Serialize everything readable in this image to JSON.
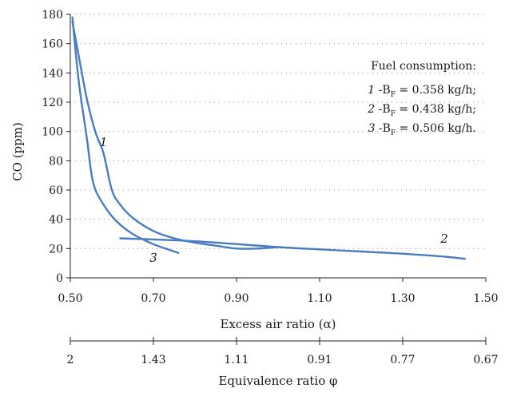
{
  "chart_data": {
    "type": "line",
    "ylabel": "CO (ppm)",
    "xlabel": "Excess air ratio (α)",
    "x2label": "Equivalence ratio φ",
    "xlim": [
      0.5,
      1.5
    ],
    "ylim": [
      0,
      180
    ],
    "y_ticks": [
      "0",
      "20",
      "40",
      "60",
      "80",
      "100",
      "120",
      "140",
      "160",
      "180"
    ],
    "x_ticks": [
      "0.50",
      "0.70",
      "0.90",
      "1.10",
      "1.30",
      "1.50"
    ],
    "x2_ticks": [
      "2",
      "1.43",
      "1.11",
      "0.91",
      "0.77",
      "0.67"
    ],
    "grid": "horizontal dotted",
    "line_color": "#4a7cc0",
    "legend": {
      "title": "Fuel consumption:",
      "entries": [
        {
          "num": "1",
          "text": " -B",
          "sub": "F",
          "value": " = 0.358 kg/h;"
        },
        {
          "num": "2",
          "text": " -B",
          "sub": "F",
          "value": " = 0.438 kg/h;"
        },
        {
          "num": "3",
          "text": " -B",
          "sub": "F",
          "value": " = 0.506 kg/h."
        }
      ]
    },
    "series": [
      {
        "label": "1",
        "label_at": [
          0.58,
          90
        ],
        "points": [
          [
            0.505,
            175
          ],
          [
            0.52,
            152
          ],
          [
            0.54,
            122
          ],
          [
            0.56,
            100
          ],
          [
            0.58,
            85
          ],
          [
            0.6,
            60
          ],
          [
            0.62,
            50
          ],
          [
            0.65,
            41
          ],
          [
            0.7,
            32
          ],
          [
            0.75,
            27
          ],
          [
            0.8,
            24
          ],
          [
            0.85,
            22
          ],
          [
            0.9,
            20
          ],
          [
            0.95,
            20
          ],
          [
            1.0,
            21
          ]
        ]
      },
      {
        "label": "2",
        "label_at": [
          1.4,
          24
        ],
        "points": [
          [
            0.62,
            27
          ],
          [
            0.8,
            25
          ],
          [
            1.0,
            21
          ],
          [
            1.1,
            19.5
          ],
          [
            1.2,
            18
          ],
          [
            1.3,
            16.5
          ],
          [
            1.4,
            14.5
          ],
          [
            1.45,
            13
          ]
        ]
      },
      {
        "label": "3",
        "label_at": [
          0.7,
          11
        ],
        "points": [
          [
            0.505,
            178
          ],
          [
            0.52,
            135
          ],
          [
            0.54,
            95
          ],
          [
            0.555,
            65
          ],
          [
            0.58,
            50
          ],
          [
            0.61,
            39
          ],
          [
            0.65,
            30
          ],
          [
            0.7,
            23
          ],
          [
            0.74,
            19
          ],
          [
            0.76,
            17
          ]
        ]
      }
    ]
  }
}
